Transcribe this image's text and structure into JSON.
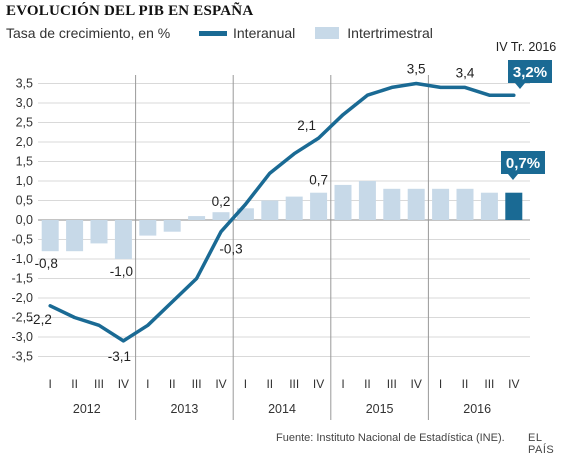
{
  "title": "EVOLUCIÓN DEL PIB EN ESPAÑA",
  "subtitle": "Tasa de crecimiento, en %",
  "source": "Fuente: Instituto Nacional de Estadística (INE).",
  "brand": "EL PAÍS",
  "colors": {
    "line": "#1a6a94",
    "bar": "#c7d9e8",
    "bar_highlight": "#1a6a94",
    "grid": "#cccccc",
    "separator": "#999999"
  },
  "chart_data": {
    "type": "bar+line",
    "categories": [
      "I",
      "II",
      "III",
      "IV",
      "I",
      "II",
      "III",
      "IV",
      "I",
      "II",
      "III",
      "IV",
      "I",
      "II",
      "III",
      "IV",
      "I",
      "II",
      "III",
      "IV"
    ],
    "years": [
      "2012",
      "2013",
      "2014",
      "2015",
      "2016"
    ],
    "series": [
      {
        "name": "Interanual",
        "type": "line",
        "values": [
          -2.2,
          -2.5,
          -2.7,
          -3.1,
          -2.7,
          -2.1,
          -1.5,
          -0.3,
          0.4,
          1.2,
          1.7,
          2.1,
          2.7,
          3.2,
          3.4,
          3.5,
          3.4,
          3.4,
          3.2,
          3.2
        ]
      },
      {
        "name": "Intertrimestral",
        "type": "bar",
        "values": [
          -0.8,
          -0.8,
          -0.6,
          -1.0,
          -0.4,
          -0.3,
          0.1,
          0.2,
          0.3,
          0.5,
          0.6,
          0.7,
          0.9,
          1.0,
          0.8,
          0.8,
          0.8,
          0.8,
          0.7,
          0.7
        ]
      }
    ],
    "data_labels": [
      {
        "series": "Interanual",
        "index": 0,
        "text": "-2,2"
      },
      {
        "series": "Interanual",
        "index": 3,
        "text": "-3,1"
      },
      {
        "series": "Interanual",
        "index": 7,
        "text": "-0,3"
      },
      {
        "series": "Interanual",
        "index": 11,
        "text": "2,1"
      },
      {
        "series": "Interanual",
        "index": 15,
        "text": "3,5"
      },
      {
        "series": "Interanual",
        "index": 17,
        "text": "3,4"
      },
      {
        "series": "Intertrimestral",
        "index": 0,
        "text": "-0,8"
      },
      {
        "series": "Intertrimestral",
        "index": 3,
        "text": "-1,0"
      },
      {
        "series": "Intertrimestral",
        "index": 7,
        "text": "0,2"
      },
      {
        "series": "Intertrimestral",
        "index": 11,
        "text": "0,7"
      }
    ],
    "callouts": [
      {
        "series": "Interanual",
        "index": 19,
        "text": "3,2%"
      },
      {
        "series": "Intertrimestral",
        "index": 19,
        "text": "0,7%"
      }
    ],
    "period_label": "IV Tr. 2016",
    "highlight_index": 19,
    "ylim": [
      -3.75,
      3.75
    ],
    "yticks": [
      -3.5,
      -3.0,
      -2.5,
      -2.0,
      -1.5,
      -1.0,
      -0.5,
      0.0,
      0.5,
      1.0,
      1.5,
      2.0,
      2.5,
      3.0,
      3.5
    ],
    "ytick_labels": [
      "-3,5",
      "-3,0",
      "-2,5",
      "-2,0",
      "-1,5",
      "-1,0",
      "-0,5",
      "0,0",
      "0,5",
      "1,0",
      "1,5",
      "2,0",
      "2,5",
      "3,0",
      "3,5"
    ],
    "grid": "horizontal",
    "legend": "top"
  }
}
